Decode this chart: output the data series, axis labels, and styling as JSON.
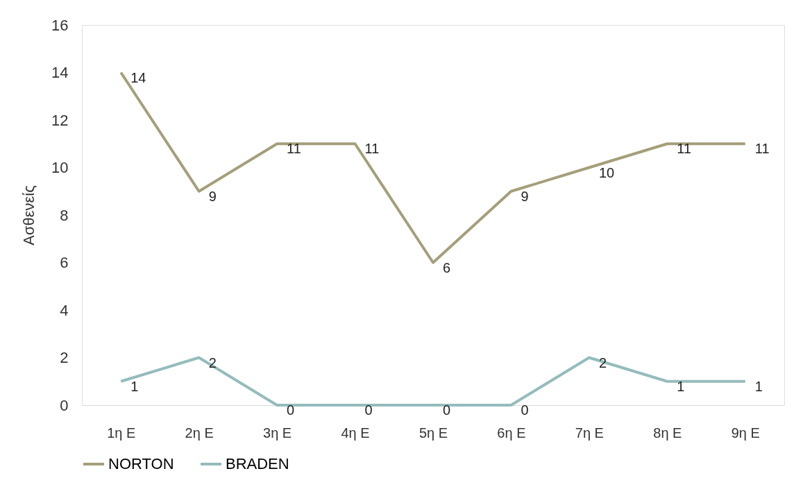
{
  "chart_data": {
    "type": "line",
    "ylabel": "Ασθενείς",
    "categories": [
      "1η Ε",
      "2η Ε",
      "3η Ε",
      "4η Ε",
      "5η Ε",
      "6η Ε",
      "7η Ε",
      "8η Ε",
      "9η Ε"
    ],
    "series": [
      {
        "name": "NORTON",
        "color": "#a59f7a",
        "values": [
          14,
          9,
          11,
          11,
          6,
          9,
          10,
          11,
          11
        ]
      },
      {
        "name": "BRADEN",
        "color": "#94bcbc",
        "values": [
          1,
          2,
          0,
          0,
          0,
          0,
          2,
          1,
          1
        ]
      }
    ],
    "ylim": [
      0,
      16
    ],
    "yticks": [
      0,
      2,
      4,
      6,
      8,
      10,
      12,
      14,
      16
    ],
    "grid": false,
    "legend": "bottom",
    "data_labels": true,
    "marker": "none",
    "line_style": "solid"
  }
}
